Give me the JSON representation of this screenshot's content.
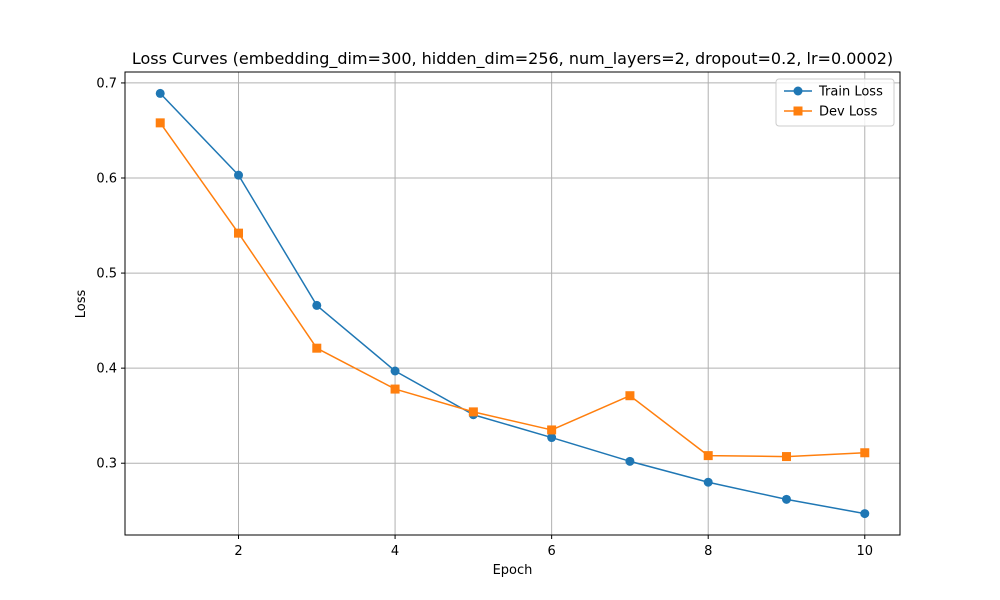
{
  "chart_data": {
    "type": "line",
    "title": "Loss Curves (embedding_dim=300, hidden_dim=256, num_layers=2, dropout=0.2, lr=0.0002)",
    "xlabel": "Epoch",
    "ylabel": "Loss",
    "xlim": [
      0.55,
      10.45
    ],
    "ylim": [
      0.2245,
      0.7115
    ],
    "xticks": [
      2,
      4,
      6,
      8,
      10
    ],
    "yticks": [
      0.3,
      0.4,
      0.5,
      0.6,
      0.7
    ],
    "xtick_labels": [
      "2",
      "4",
      "6",
      "8",
      "10"
    ],
    "ytick_labels": [
      "0.3",
      "0.4",
      "0.5",
      "0.6",
      "0.7"
    ],
    "grid": true,
    "legend_position": "top-right",
    "x": [
      1,
      2,
      3,
      4,
      5,
      6,
      7,
      8,
      9,
      10
    ],
    "series": [
      {
        "name": "Train Loss",
        "values": [
          0.689,
          0.603,
          0.466,
          0.397,
          0.351,
          0.327,
          0.302,
          0.28,
          0.262,
          0.247
        ],
        "color": "#1f77b4",
        "marker": "circle"
      },
      {
        "name": "Dev Loss",
        "values": [
          0.658,
          0.542,
          0.421,
          0.378,
          0.354,
          0.335,
          0.371,
          0.308,
          0.307,
          0.311
        ],
        "color": "#ff7f0e",
        "marker": "square"
      }
    ]
  }
}
